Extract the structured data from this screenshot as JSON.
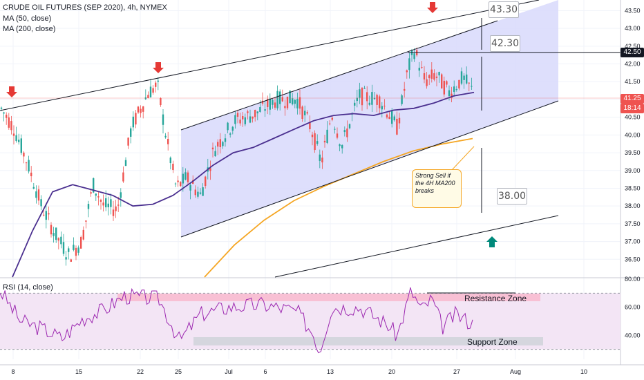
{
  "title": "CRUDE OIL FUTURES (SEP 2020), 4h, NYMEX",
  "indicators": [
    "MA (50, close)",
    "MA (200, close)"
  ],
  "rsi_label": "RSI (14, close)",
  "colors": {
    "up": "#26a69a",
    "down": "#ef5350",
    "ma50": "#4a2f8f",
    "ma200": "#f5a623",
    "channel": "#d8d9fb",
    "rsi_line": "#9c27b0"
  },
  "annotations": {
    "target_top": "43.30",
    "target_mid": "42.30",
    "target_low": "38.00",
    "note": "Strong Sell if the 4H MA200 breaks",
    "resistance": "Resistance Zone",
    "support": "Support Zone"
  },
  "price_tags": {
    "level": "42.50",
    "last": "41.25",
    "countdown": "18:14"
  },
  "chart_data": {
    "type": "candlestick",
    "title": "CRUDE OIL FUTURES (SEP 2020), 4h, NYMEX",
    "x_ticks": [
      "8",
      "15",
      "22",
      "25",
      "Jul",
      "6",
      "13",
      "20",
      "27",
      "Aug",
      "10"
    ],
    "y_ticks": [
      "43.50",
      "43.00",
      "42.50",
      "42.00",
      "41.50",
      "41.00",
      "40.50",
      "40.00",
      "39.50",
      "39.00",
      "38.50",
      "38.00",
      "37.50",
      "37.00",
      "36.50"
    ],
    "ylim": [
      36.0,
      43.8
    ],
    "rsi_ticks": [
      "80.00",
      "60.00",
      "40.00"
    ],
    "rsi_lim": [
      20,
      80
    ],
    "grid": true,
    "series": [
      {
        "name": "MA (50, close)",
        "values": [
          36.0,
          37.3,
          38.4,
          38.6,
          38.45,
          38.3,
          38.0,
          38.05,
          38.3,
          38.7,
          39.15,
          39.5,
          39.65,
          39.9,
          40.15,
          40.4,
          40.55,
          40.6,
          40.55,
          40.7,
          40.75,
          40.9,
          41.1,
          41.2
        ]
      },
      {
        "name": "MA (200, close)",
        "values": [
          36.0,
          36.9,
          37.6,
          38.15,
          38.55,
          38.9,
          39.25,
          39.55,
          39.75,
          39.9
        ]
      }
    ]
  }
}
